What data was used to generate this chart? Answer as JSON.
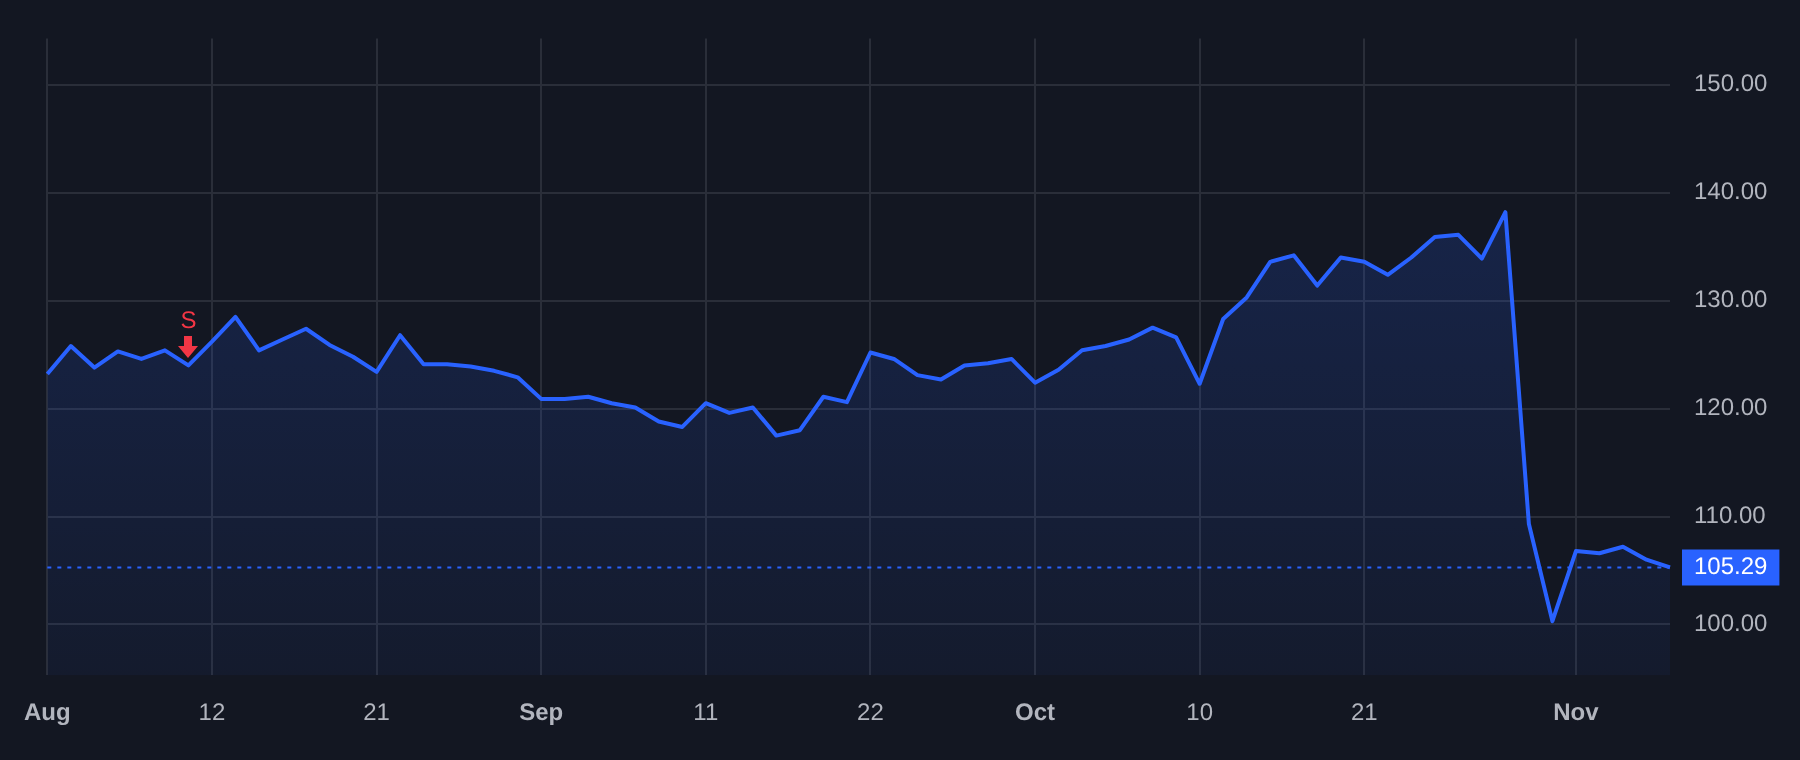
{
  "chart_data": {
    "type": "area",
    "categories": [
      "Aug",
      null,
      null,
      null,
      null,
      null,
      null,
      "12",
      null,
      null,
      null,
      null,
      null,
      null,
      "21",
      null,
      null,
      null,
      null,
      null,
      null,
      "Sep",
      null,
      null,
      null,
      null,
      null,
      null,
      "11",
      null,
      null,
      null,
      null,
      null,
      null,
      "22",
      null,
      null,
      null,
      null,
      null,
      null,
      "Oct",
      null,
      null,
      null,
      null,
      null,
      null,
      "10",
      null,
      null,
      null,
      null,
      null,
      null,
      "21",
      null,
      null,
      null,
      null,
      null,
      null,
      null,
      null,
      "Nov",
      null,
      null,
      null,
      null
    ],
    "series": [
      {
        "color": "#2962ff",
        "values": [
          123.2,
          125.8,
          123.8,
          125.3,
          124.6,
          125.4,
          124.0,
          126.2,
          128.5,
          125.4,
          126.4,
          127.4,
          125.9,
          124.8,
          123.4,
          126.8,
          124.1,
          124.1,
          123.9,
          123.5,
          122.9,
          120.9,
          120.9,
          121.1,
          120.5,
          120.1,
          118.8,
          118.3,
          120.5,
          119.6,
          120.1,
          117.5,
          118.0,
          121.1,
          120.6,
          125.2,
          124.6,
          123.1,
          122.7,
          124.0,
          124.2,
          124.6,
          122.4,
          123.6,
          125.4,
          125.8,
          126.4,
          127.5,
          126.6,
          122.3,
          128.3,
          130.3,
          133.6,
          134.2,
          131.4,
          134.0,
          133.6,
          132.4,
          134.0,
          135.9,
          136.1,
          133.9,
          138.2,
          109.3,
          100.3,
          106.8,
          106.6,
          107.2,
          106.0,
          105.29
        ]
      }
    ],
    "ylim": [
      95.3,
      154.3
    ],
    "yticks": [
      {
        "value": 100,
        "label": "100.00"
      },
      {
        "value": 110,
        "label": "110.00"
      },
      {
        "value": 120,
        "label": "120.00"
      },
      {
        "value": 130,
        "label": "130.00"
      },
      {
        "value": 140,
        "label": "140.00"
      },
      {
        "value": 150,
        "label": "150.00"
      }
    ],
    "ref_lines": [
      {
        "axis": "y",
        "value": 105.29,
        "label": "105.29",
        "color": "#2962ff",
        "line_style": "dotted"
      }
    ],
    "annotations": [
      {
        "text": "S",
        "y": 124.0
      }
    ],
    "grid": true,
    "marker": "none",
    "legend": false
  }
}
